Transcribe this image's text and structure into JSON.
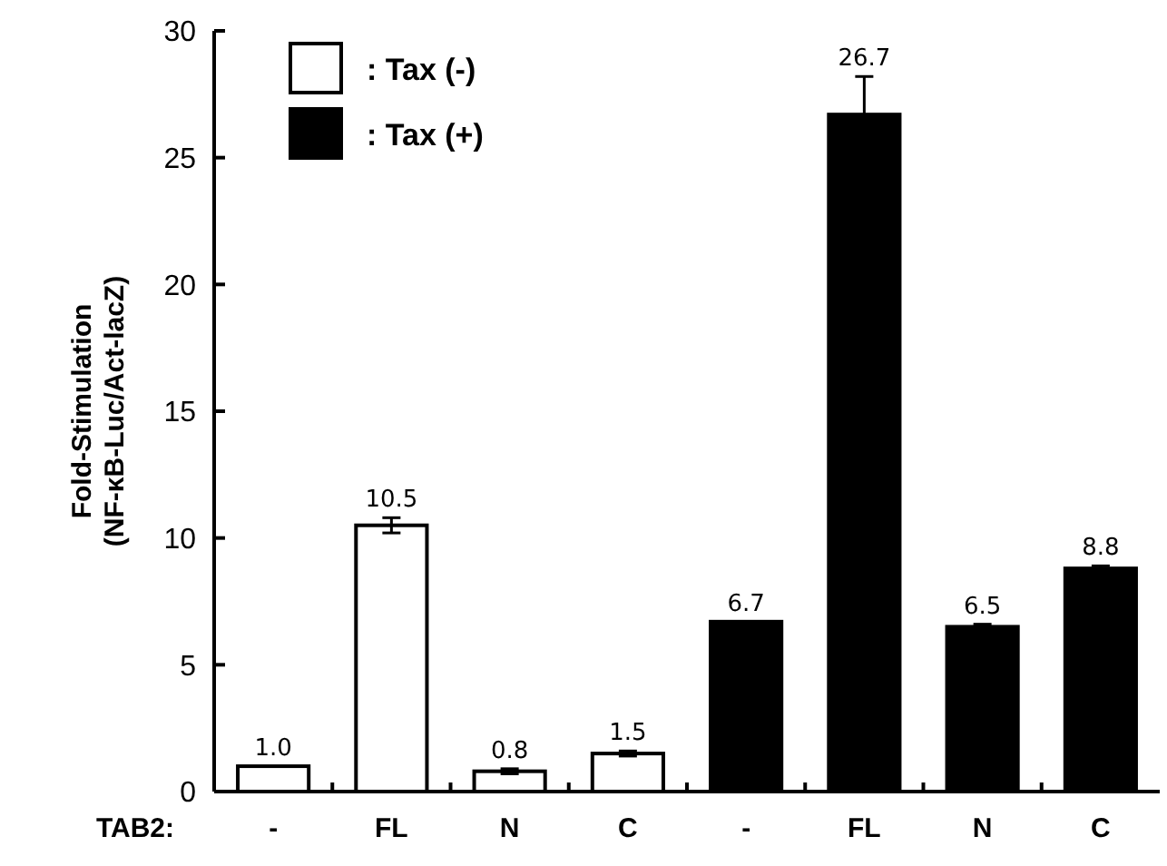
{
  "chart_data": {
    "type": "bar",
    "ylabel": "Fold-Stimulation\n(NF-κB-Luc/Act-lacZ)",
    "xlabel": "TAB2:",
    "categories": [
      "-",
      "FL",
      "N",
      "C",
      "-",
      "FL",
      "N",
      "C"
    ],
    "series": [
      {
        "name": ": Tax (-)",
        "color": "#ffffff",
        "values": [
          1.0,
          10.5,
          0.8,
          1.5,
          null,
          null,
          null,
          null
        ],
        "errors": [
          null,
          0.3,
          0.1,
          0.1,
          null,
          null,
          null,
          null
        ],
        "value_labels": [
          "1.0",
          "10.5",
          "0.8",
          "1.5",
          null,
          null,
          null,
          null
        ]
      },
      {
        "name": ": Tax (+)",
        "color": "#000000",
        "values": [
          null,
          null,
          null,
          null,
          6.7,
          26.7,
          6.5,
          8.8
        ],
        "errors": [
          null,
          null,
          null,
          null,
          null,
          1.5,
          0.1,
          0.1
        ],
        "value_labels": [
          null,
          null,
          null,
          null,
          "6.7",
          "26.7",
          "6.5",
          "8.8"
        ]
      }
    ],
    "ylim": [
      0,
      30
    ],
    "yticks": [
      0,
      5,
      10,
      15,
      20,
      25,
      30
    ],
    "legend": "top left",
    "grid": false
  }
}
